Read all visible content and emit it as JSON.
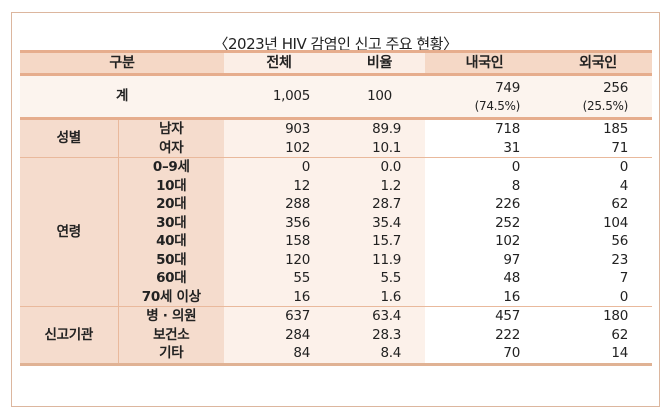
{
  "title": "〈2023년 HIV 감염인 신고 주요 현황〉",
  "headers": {
    "category": "구분",
    "total": "전체",
    "ratio": "비율",
    "domestic": "내국인",
    "foreign": "외국인"
  },
  "total_row": {
    "label": "계",
    "total": "1,005",
    "ratio": "100",
    "domestic": "749",
    "domestic_pct": "(74.5%)",
    "foreign": "256",
    "foreign_pct": "(25.5%)"
  },
  "groups": {
    "sex": {
      "label": "성별",
      "rows": [
        {
          "label": "남자",
          "total": "903",
          "ratio": "89.9",
          "domestic": "718",
          "foreign": "185"
        },
        {
          "label": "여자",
          "total": "102",
          "ratio": "10.1",
          "domestic": "31",
          "foreign": "71"
        }
      ]
    },
    "age": {
      "label": "연령",
      "rows": [
        {
          "label": "0–9세",
          "total": "0",
          "ratio": "0.0",
          "domestic": "0",
          "foreign": "0"
        },
        {
          "label": "10대",
          "total": "12",
          "ratio": "1.2",
          "domestic": "8",
          "foreign": "4"
        },
        {
          "label": "20대",
          "total": "288",
          "ratio": "28.7",
          "domestic": "226",
          "foreign": "62"
        },
        {
          "label": "30대",
          "total": "356",
          "ratio": "35.4",
          "domestic": "252",
          "foreign": "104"
        },
        {
          "label": "40대",
          "total": "158",
          "ratio": "15.7",
          "domestic": "102",
          "foreign": "56"
        },
        {
          "label": "50대",
          "total": "120",
          "ratio": "11.9",
          "domestic": "97",
          "foreign": "23"
        },
        {
          "label": "60대",
          "total": "55",
          "ratio": "5.5",
          "domestic": "48",
          "foreign": "7"
        },
        {
          "label": "70세 이상",
          "total": "16",
          "ratio": "1.6",
          "domestic": "16",
          "foreign": "0"
        }
      ]
    },
    "agency": {
      "label": "신고기관",
      "rows": [
        {
          "label": "병 · 의원",
          "total": "637",
          "ratio": "63.4",
          "domestic": "457",
          "foreign": "180"
        },
        {
          "label": "보건소",
          "total": "284",
          "ratio": "28.3",
          "domestic": "222",
          "foreign": "62"
        },
        {
          "label": "기타",
          "total": "84",
          "ratio": "8.4",
          "domestic": "70",
          "foreign": "14"
        }
      ]
    }
  },
  "colors": {
    "header_dark": "#f5d8c6",
    "header_light": "#fbeee6",
    "border": "#e6ad8d",
    "label_bg": "#f5dccd",
    "tint_bg": "#fcf1ea"
  }
}
